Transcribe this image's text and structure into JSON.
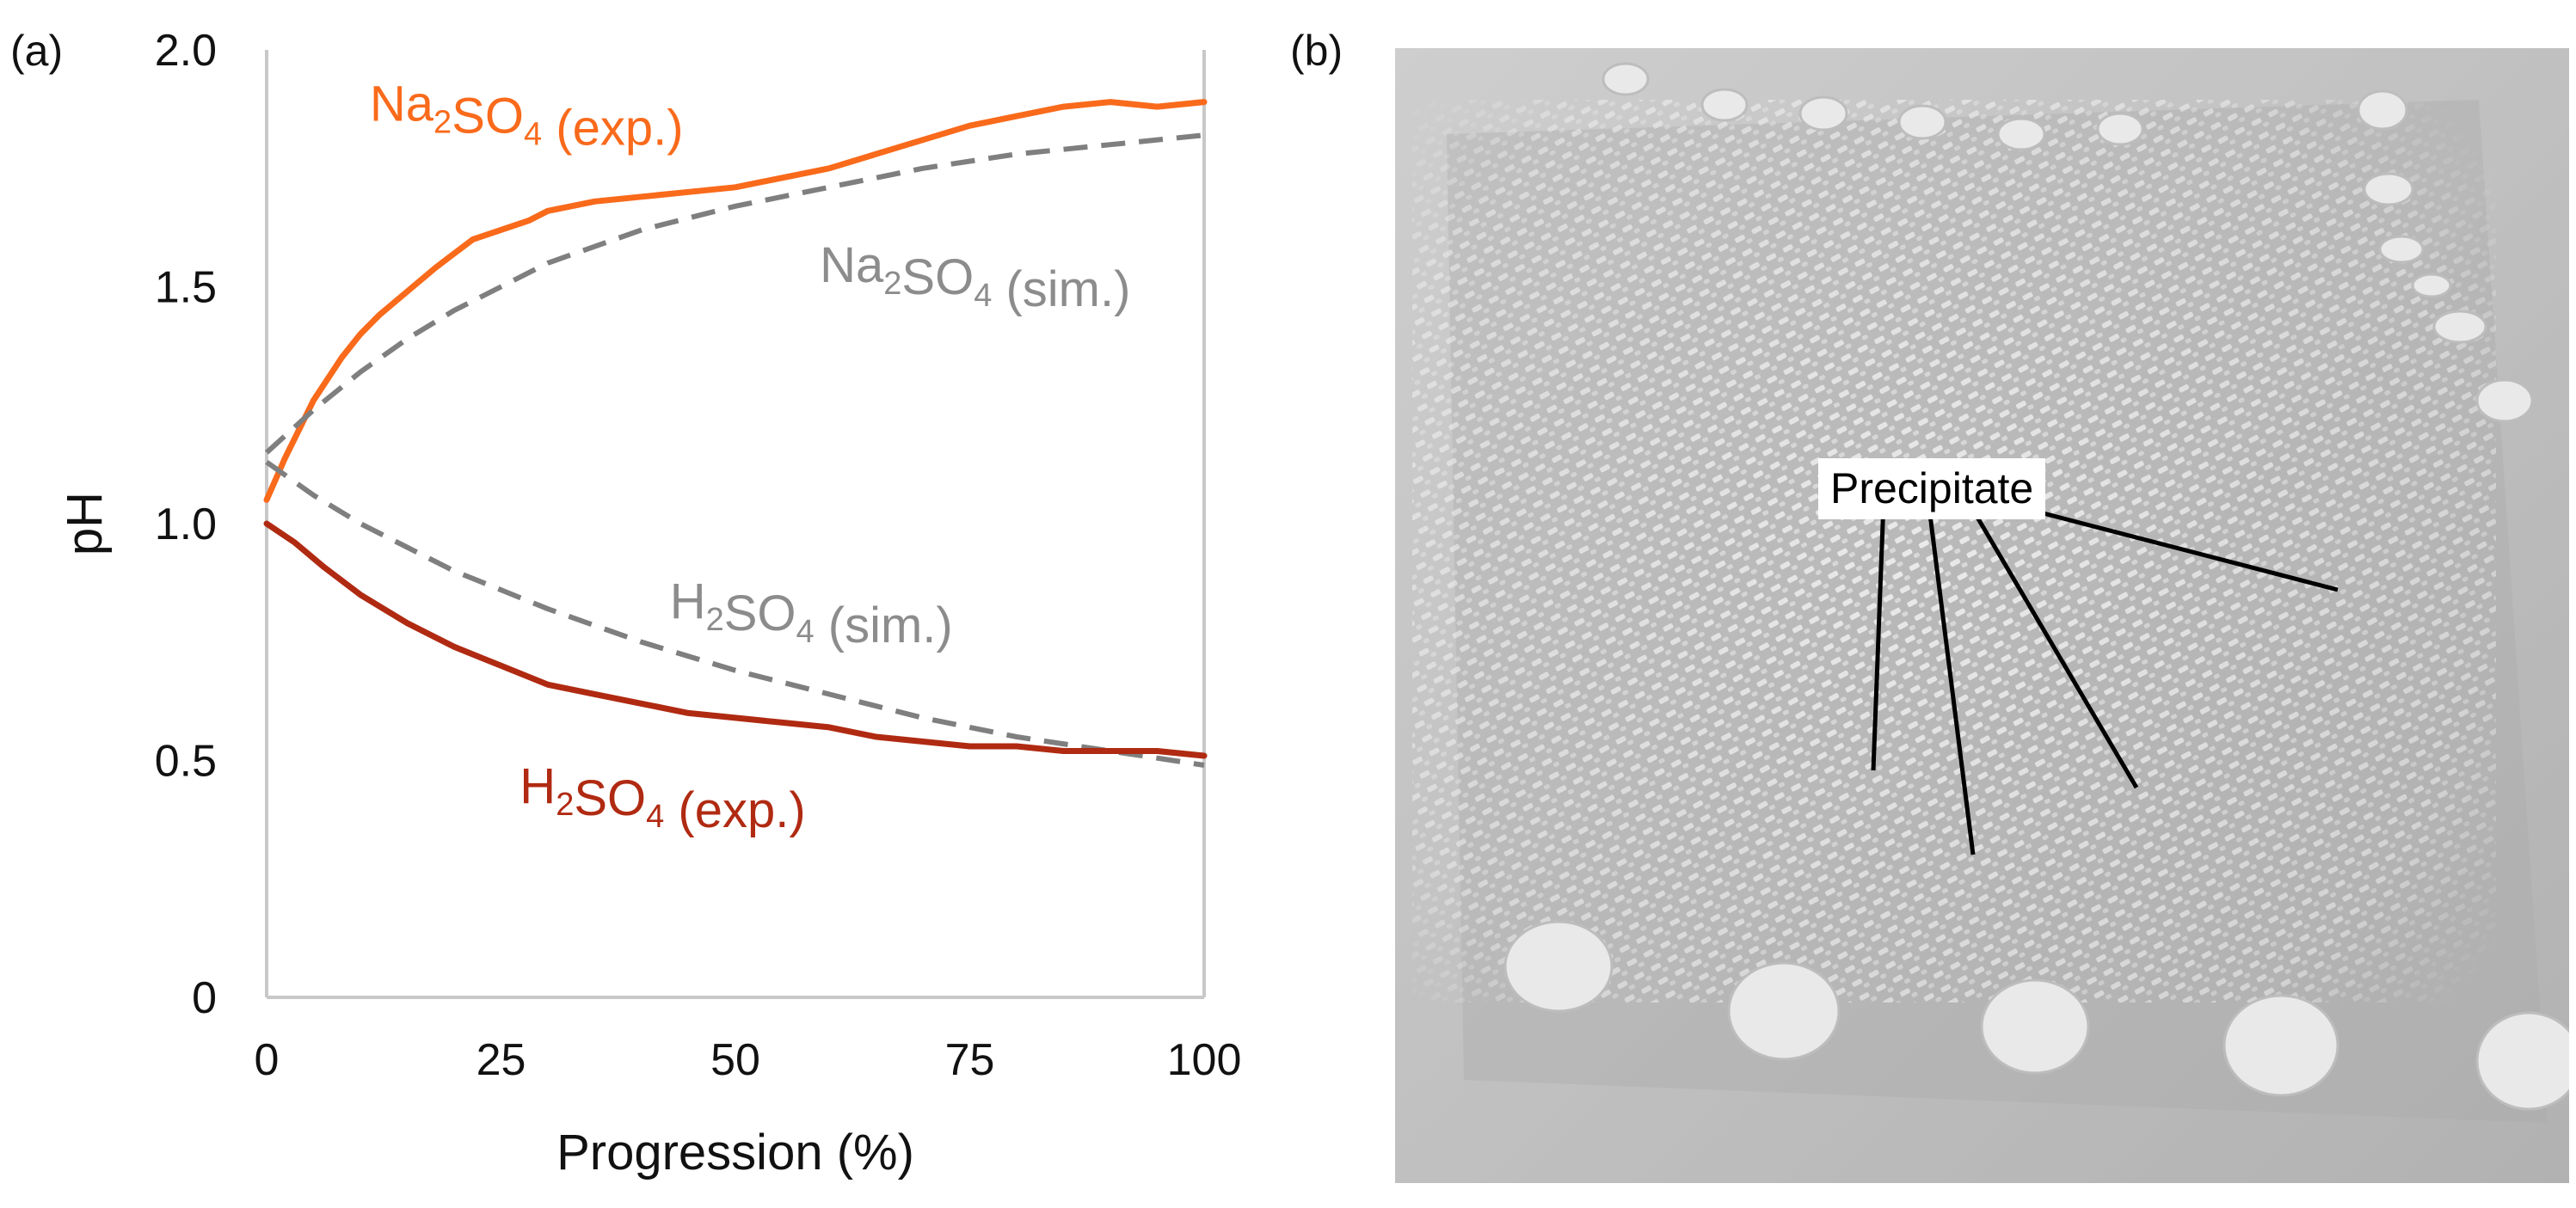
{
  "panels": {
    "a_label": "(a)",
    "b_label": "(b)"
  },
  "photo": {
    "annotation": "Precipitate"
  },
  "colors": {
    "na2so4_exp": "#f96a1b",
    "h2so4_exp": "#b02a12",
    "sim": "#7f7f7f",
    "axis": "#c8c8c8",
    "sim_label": "#8c8c8c"
  },
  "chart_data": {
    "type": "line",
    "xlabel": "Progression (%)",
    "ylabel": "pH",
    "xlim": [
      0,
      100
    ],
    "ylim": [
      0,
      2.0
    ],
    "xticks": [
      0,
      25,
      50,
      75,
      100
    ],
    "yticks": [
      0,
      0.5,
      1.0,
      1.5,
      2.0
    ],
    "ytick_labels": [
      "0",
      "0.5",
      "1.0",
      "1.5",
      "2.0"
    ],
    "grid": false,
    "series": [
      {
        "name": "Na2SO4 (exp.)",
        "style": "solid",
        "color": "#f96a1b",
        "x": [
          0,
          2,
          5,
          8,
          10,
          12,
          15,
          18,
          20,
          22,
          25,
          28,
          30,
          35,
          40,
          45,
          50,
          55,
          60,
          65,
          70,
          75,
          80,
          85,
          90,
          95,
          100
        ],
        "y": [
          1.05,
          1.14,
          1.26,
          1.35,
          1.4,
          1.44,
          1.49,
          1.54,
          1.57,
          1.6,
          1.62,
          1.64,
          1.66,
          1.68,
          1.69,
          1.7,
          1.71,
          1.73,
          1.75,
          1.78,
          1.81,
          1.84,
          1.86,
          1.88,
          1.89,
          1.88,
          1.89
        ]
      },
      {
        "name": "Na2SO4 (sim.)",
        "style": "dashed",
        "color": "#7f7f7f",
        "x": [
          0,
          5,
          10,
          15,
          20,
          25,
          30,
          40,
          50,
          60,
          70,
          80,
          90,
          100
        ],
        "y": [
          1.15,
          1.24,
          1.32,
          1.39,
          1.45,
          1.5,
          1.55,
          1.62,
          1.67,
          1.71,
          1.75,
          1.78,
          1.8,
          1.82
        ]
      },
      {
        "name": "H2SO4 (sim.)",
        "style": "dashed",
        "color": "#7f7f7f",
        "x": [
          0,
          5,
          10,
          15,
          20,
          25,
          30,
          40,
          50,
          60,
          70,
          80,
          90,
          100
        ],
        "y": [
          1.13,
          1.06,
          1.0,
          0.95,
          0.9,
          0.86,
          0.82,
          0.75,
          0.69,
          0.64,
          0.59,
          0.55,
          0.52,
          0.49
        ]
      },
      {
        "name": "H2SO4 (exp.)",
        "style": "solid",
        "color": "#b02a12",
        "x": [
          0,
          3,
          6,
          10,
          15,
          20,
          25,
          30,
          35,
          40,
          45,
          50,
          55,
          60,
          65,
          70,
          75,
          80,
          85,
          90,
          95,
          100
        ],
        "y": [
          1.0,
          0.96,
          0.91,
          0.85,
          0.79,
          0.74,
          0.7,
          0.66,
          0.64,
          0.62,
          0.6,
          0.59,
          0.58,
          0.57,
          0.55,
          0.54,
          0.53,
          0.53,
          0.52,
          0.52,
          0.52,
          0.51
        ]
      }
    ],
    "annotations": [
      {
        "series": 0,
        "base": "Na",
        "sub1": "2",
        "mid": "SO",
        "sub2": "4",
        "tail": " (exp.)",
        "color": "#f96a1b",
        "at": [
          11,
          1.85
        ]
      },
      {
        "series": 1,
        "base": "Na",
        "sub1": "2",
        "mid": "SO",
        "sub2": "4",
        "tail": " (sim.)",
        "color": "#8c8c8c",
        "at": [
          59,
          1.51
        ]
      },
      {
        "series": 2,
        "base": "H",
        "sub1": "2",
        "mid": "SO",
        "sub2": "4",
        "tail": " (sim.)",
        "color": "#8c8c8c",
        "at": [
          43,
          0.8
        ]
      },
      {
        "series": 3,
        "base": "H",
        "sub1": "2",
        "mid": "SO",
        "sub2": "4",
        "tail": " (exp.)",
        "color": "#b02a12",
        "at": [
          27,
          0.41
        ]
      }
    ]
  }
}
